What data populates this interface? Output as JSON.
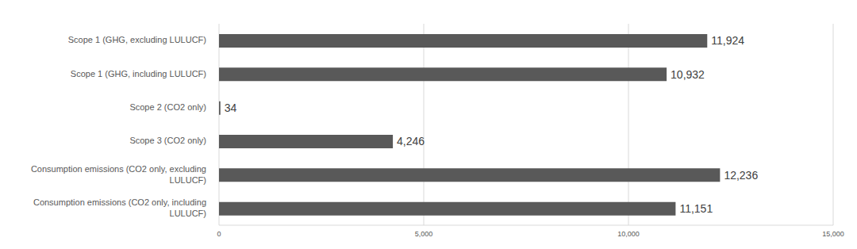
{
  "chart_data": {
    "type": "bar",
    "orientation": "horizontal",
    "categories": [
      "Scope 1 (GHG, excluding LULUCF)",
      "Scope 1 (GHG, including LULUCF)",
      "Scope 2 (CO2 only)",
      "Scope 3 (CO2 only)",
      "Consumption emissions (CO2 only, excluding LULUCF)",
      "Consumption emissions (CO2 only, including LULUCF)"
    ],
    "values": [
      11924,
      10932,
      34,
      4246,
      12236,
      11151
    ],
    "value_labels": [
      "11,924",
      "10,932",
      "34",
      "4,246",
      "12,236",
      "11,151"
    ],
    "data_labels": true,
    "color": "#595959",
    "xlim": [
      0,
      15000
    ],
    "xticks": [
      0,
      {
        "value": 5000,
        "label": "5,000"
      },
      {
        "value": 10000,
        "label": "10,000"
      },
      {
        "value": 15000,
        "label": "15,000"
      }
    ],
    "grid": true
  }
}
